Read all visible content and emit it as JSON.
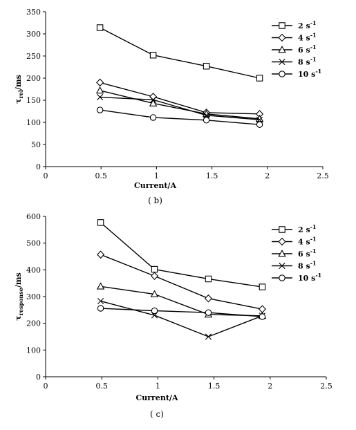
{
  "chart_data": [
    {
      "type": "line",
      "caption": "( b)",
      "xlabel": "Current/A",
      "ylabel_main": "τ",
      "ylabel_sub": "rel",
      "ylabel_unit": "/ms",
      "xlim": [
        0,
        2.5
      ],
      "ylim": [
        0,
        350
      ],
      "xticks": [
        0,
        0.5,
        1,
        1.5,
        2,
        2.5
      ],
      "xtick_labels": [
        "0",
        "0.5",
        "1",
        "1.5",
        "2",
        "2.5"
      ],
      "yticks": [
        0,
        50,
        100,
        150,
        200,
        250,
        300,
        350
      ],
      "ytick_labels": [
        "0",
        "50",
        "100",
        "150",
        "200",
        "250",
        "300",
        "350"
      ],
      "legend_position": "top-right",
      "series": [
        {
          "name": "2 s",
          "name_sup": "-1",
          "marker": "square",
          "x": [
            0.49,
            0.97,
            1.45,
            1.93
          ],
          "y": [
            314,
            252,
            227,
            200
          ]
        },
        {
          "name": "4 s",
          "name_sup": "-1",
          "marker": "diamond",
          "x": [
            0.49,
            0.97,
            1.45,
            1.93
          ],
          "y": [
            190,
            158,
            122,
            119
          ]
        },
        {
          "name": "6 s",
          "name_sup": "-1",
          "marker": "triangle",
          "x": [
            0.49,
            0.97,
            1.45,
            1.93
          ],
          "y": [
            172,
            143,
            119,
            108
          ]
        },
        {
          "name": "8 s",
          "name_sup": "-1",
          "marker": "cross",
          "x": [
            0.49,
            0.97,
            1.45,
            1.93
          ],
          "y": [
            157,
            151,
            116,
            106
          ]
        },
        {
          "name": "10 s",
          "name_sup": "-1",
          "marker": "circle",
          "x": [
            0.49,
            0.97,
            1.45,
            1.93
          ],
          "y": [
            128,
            111,
            105,
            95
          ]
        }
      ]
    },
    {
      "type": "line",
      "caption": "( c)",
      "xlabel": "Current/A",
      "ylabel_main": "τ",
      "ylabel_sub": "response",
      "ylabel_unit": "/ms",
      "xlim": [
        0,
        2.5
      ],
      "ylim": [
        0,
        600
      ],
      "xticks": [
        0,
        0.5,
        1,
        1.5,
        2,
        2.5
      ],
      "xtick_labels": [
        "0",
        "0.5",
        "1",
        "1.5",
        "2",
        "2.5"
      ],
      "yticks": [
        0,
        100,
        200,
        300,
        400,
        500,
        600
      ],
      "ytick_labels": [
        "0",
        "100",
        "200",
        "300",
        "400",
        "500",
        "600"
      ],
      "legend_position": "top-right",
      "series": [
        {
          "name": "2 s",
          "name_sup": "-1",
          "marker": "square",
          "x": [
            0.49,
            0.97,
            1.45,
            1.93
          ],
          "y": [
            577,
            402,
            366,
            336
          ]
        },
        {
          "name": "4 s",
          "name_sup": "-1",
          "marker": "diamond",
          "x": [
            0.49,
            0.97,
            1.45,
            1.93
          ],
          "y": [
            457,
            377,
            293,
            253
          ]
        },
        {
          "name": "6 s",
          "name_sup": "-1",
          "marker": "triangle",
          "x": [
            0.49,
            0.97,
            1.45,
            1.93
          ],
          "y": [
            338,
            309,
            233,
            228
          ]
        },
        {
          "name": "8 s",
          "name_sup": "-1",
          "marker": "cross",
          "x": [
            0.49,
            0.97,
            1.45,
            1.93
          ],
          "y": [
            283,
            230,
            150,
            228
          ]
        },
        {
          "name": "10 s",
          "name_sup": "-1",
          "marker": "circle",
          "x": [
            0.49,
            0.97,
            1.45,
            1.93
          ],
          "y": [
            256,
            247,
            240,
            225
          ]
        }
      ]
    }
  ]
}
